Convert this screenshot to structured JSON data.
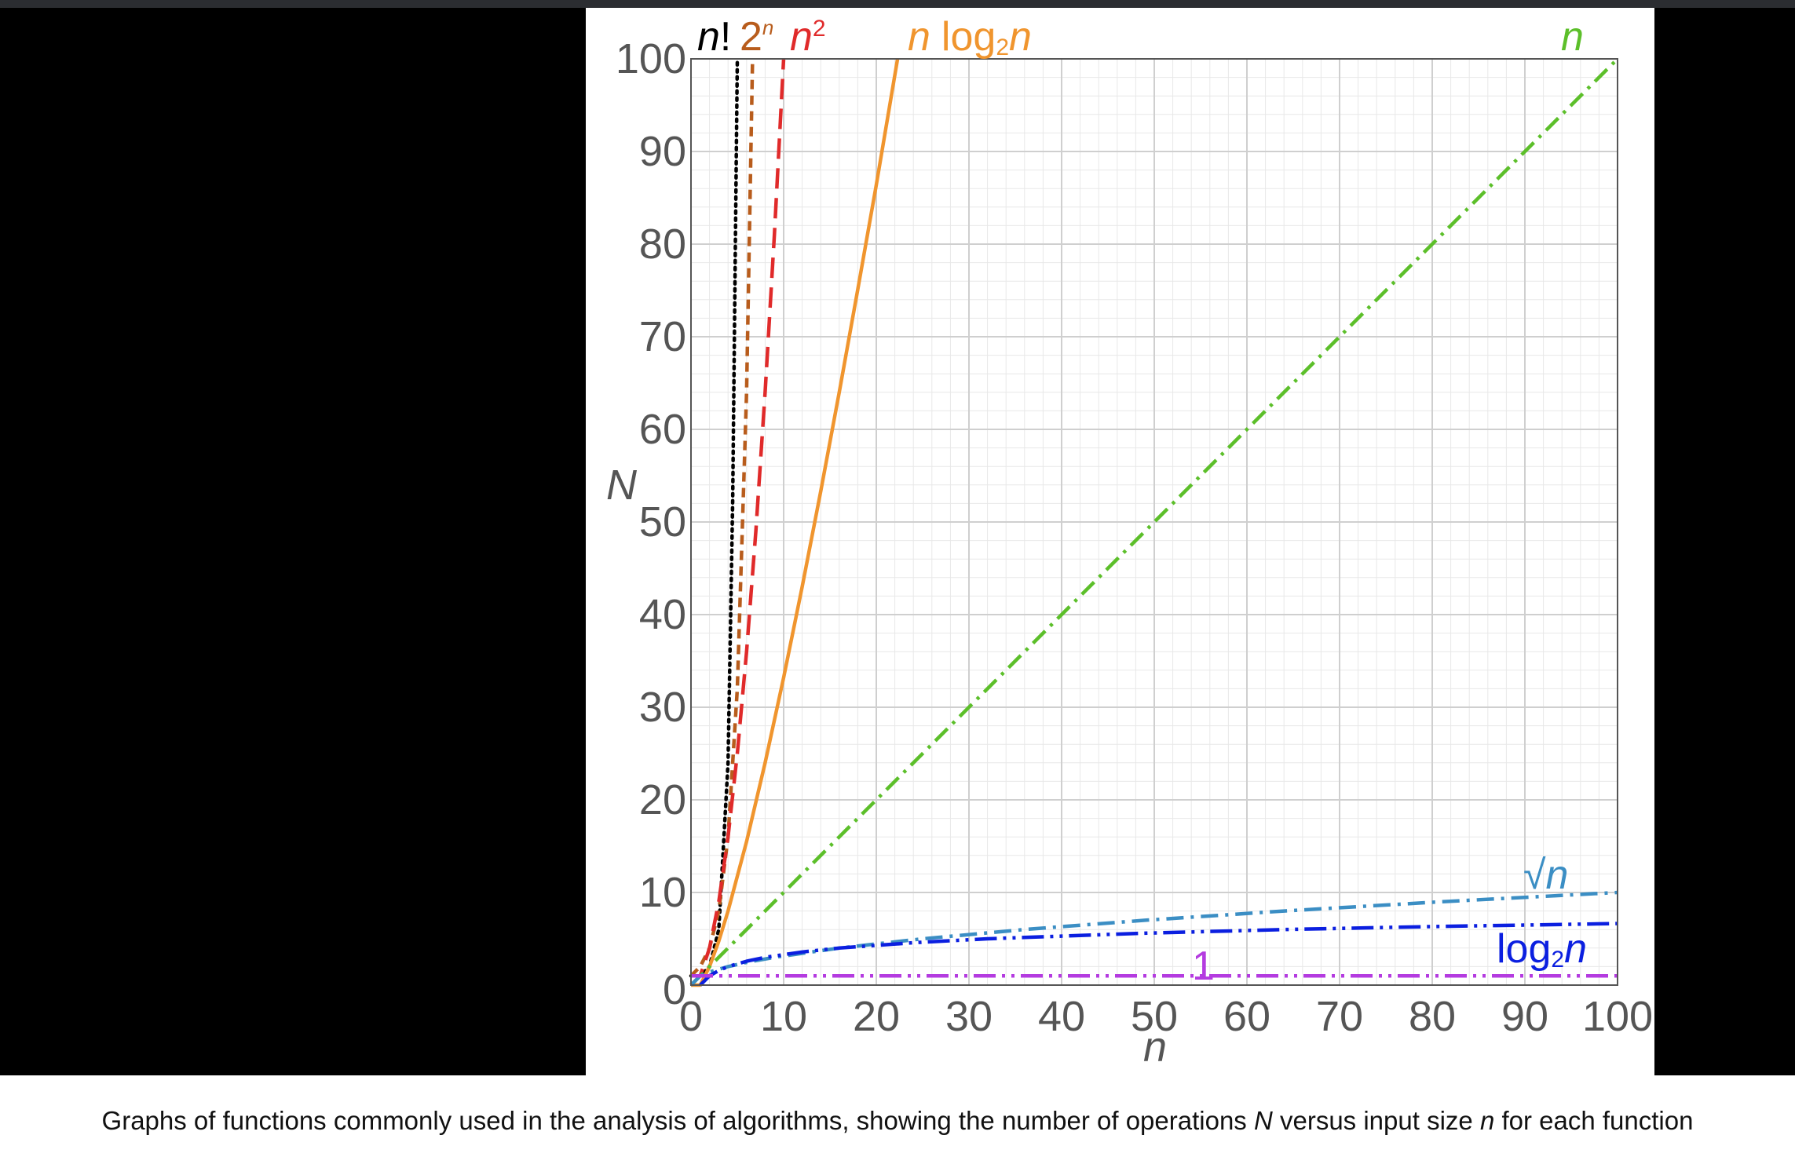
{
  "chart_data": {
    "type": "line",
    "xlabel": "n",
    "ylabel": "N",
    "xlim": [
      0,
      100
    ],
    "ylim": [
      0,
      100
    ],
    "x_ticks": [
      "0",
      "10",
      "20",
      "30",
      "40",
      "50",
      "60",
      "70",
      "80",
      "90",
      "100"
    ],
    "y_ticks": [
      "0",
      "10",
      "20",
      "30",
      "40",
      "50",
      "60",
      "70",
      "80",
      "90",
      "100"
    ],
    "grid": true,
    "series": [
      {
        "name": "n!",
        "color": "#000000",
        "style": "dotted",
        "x": [
          0,
          1,
          2,
          3,
          4,
          4.5,
          5
        ],
        "y": [
          1,
          1,
          2,
          6,
          24,
          52.3,
          100
        ]
      },
      {
        "name": "2ⁿ",
        "color": "#b85c1c",
        "style": "dashed",
        "x": [
          0,
          1,
          2,
          3,
          4,
          5,
          6,
          6.64
        ],
        "y": [
          1,
          2,
          4,
          8,
          16,
          32,
          64,
          100
        ]
      },
      {
        "name": "n²",
        "color": "#e02a2a",
        "style": "long-dashed",
        "x": [
          0,
          1,
          2,
          3,
          4,
          5,
          6,
          7,
          8,
          9,
          10
        ],
        "y": [
          0,
          1,
          4,
          9,
          16,
          25,
          36,
          49,
          64,
          81,
          100
        ]
      },
      {
        "name": "n log₂n",
        "color": "#f0952e",
        "style": "solid",
        "x": [
          0,
          1,
          2,
          3,
          4,
          6,
          8,
          10,
          12,
          14,
          16,
          18,
          20,
          22.3
        ],
        "y": [
          0,
          0,
          2,
          4.75,
          8,
          15.5,
          24,
          33.2,
          43,
          53.3,
          64,
          75.1,
          86.4,
          100
        ]
      },
      {
        "name": "n",
        "color": "#5cbf2a",
        "style": "dash-dot",
        "x": [
          0,
          100
        ],
        "y": [
          0,
          100
        ]
      },
      {
        "name": "√n",
        "color": "#3b8ec4",
        "style": "dash-dot",
        "x": [
          0,
          1,
          2,
          4,
          6,
          9,
          16,
          25,
          36,
          49,
          64,
          81,
          100
        ],
        "y": [
          0,
          1,
          1.41,
          2,
          2.45,
          3,
          4,
          5,
          6,
          7,
          8,
          9,
          10
        ]
      },
      {
        "name": "log₂n",
        "color": "#0b1fe0",
        "style": "dash-dot-dot",
        "x": [
          1,
          2,
          3,
          4,
          6,
          8,
          12,
          16,
          24,
          32,
          48,
          64,
          80,
          100
        ],
        "y": [
          0,
          1,
          1.58,
          2,
          2.58,
          3,
          3.58,
          4,
          4.58,
          5,
          5.58,
          6,
          6.32,
          6.64
        ]
      },
      {
        "name": "1",
        "color": "#b43be0",
        "style": "dash-dot-dot",
        "x": [
          0,
          100
        ],
        "y": [
          1,
          1
        ]
      }
    ],
    "labels": {
      "n_factorial": {
        "base": "n",
        "suffix": "!"
      },
      "two_n": {
        "base": "2",
        "sup": "n"
      },
      "n_squared": {
        "base": "n",
        "sup": "2"
      },
      "n_log_n": {
        "a": "n",
        "b": "log",
        "sub": "2",
        "c": "n"
      },
      "n_linear": {
        "a": "n"
      },
      "sqrt_n": {
        "root": "√",
        "a": "n"
      },
      "log_n": {
        "b": "log",
        "sub": "2",
        "a": "n"
      },
      "constant": {
        "a": "1"
      }
    }
  },
  "caption": {
    "part1": "Graphs of functions commonly used in the analysis of algorithms, showing the number of operations ",
    "var_N": "N",
    "part2": " versus input size ",
    "var_n": "n",
    "part3": " for each function"
  }
}
